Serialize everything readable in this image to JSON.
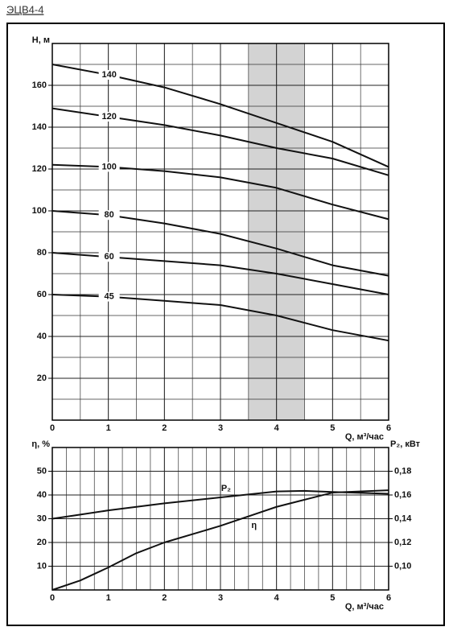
{
  "title": "ЭЦВ4-4",
  "chart_data": [
    {
      "type": "line",
      "x": [
        0,
        1,
        2,
        3,
        4,
        5,
        6
      ],
      "xlim": [
        0,
        6
      ],
      "xticks": [
        0,
        1,
        2,
        3,
        4,
        5,
        6
      ],
      "ylim": [
        0,
        180
      ],
      "yticks": [
        20,
        40,
        60,
        80,
        100,
        120,
        140,
        160
      ],
      "xlabel": "Q, м³/час",
      "ylabel": "H, м",
      "grid": true,
      "shaded_range": [
        3.5,
        4.5
      ],
      "shade_color": "#d3d3d3",
      "series": [
        {
          "name": "140",
          "color": "#111111",
          "values": [
            170,
            165,
            159,
            151,
            142,
            133,
            121
          ]
        },
        {
          "name": "120",
          "color": "#111111",
          "values": [
            149,
            145,
            141,
            136,
            130,
            125,
            117
          ]
        },
        {
          "name": "100",
          "color": "#111111",
          "values": [
            122,
            121,
            119,
            116,
            111,
            103,
            96
          ]
        },
        {
          "name": "80",
          "color": "#111111",
          "values": [
            100,
            98,
            94,
            89,
            82,
            74,
            69
          ]
        },
        {
          "name": "60",
          "color": "#111111",
          "values": [
            80,
            78,
            76,
            74,
            70,
            65,
            60
          ]
        },
        {
          "name": "45",
          "color": "#111111",
          "values": [
            60,
            59,
            57,
            55,
            50,
            43,
            38
          ]
        }
      ]
    },
    {
      "type": "line",
      "x": [
        0,
        0.5,
        1,
        1.5,
        2,
        3,
        4,
        4.5,
        5,
        6
      ],
      "xlim": [
        0,
        6
      ],
      "xticks": [
        0,
        1,
        2,
        3,
        4,
        5,
        6
      ],
      "ylim": [
        0,
        60
      ],
      "yticks": [
        10,
        20,
        30,
        40,
        50
      ],
      "y2lim": [
        0.08,
        0.2
      ],
      "y2ticks": [
        {
          "value": 0.1,
          "label": "0,10"
        },
        {
          "value": 0.12,
          "label": "0,12"
        },
        {
          "value": 0.14,
          "label": "0,14"
        },
        {
          "value": 0.16,
          "label": "0,16"
        },
        {
          "value": 0.18,
          "label": "0,18"
        }
      ],
      "xlabel": "Q, м³/час",
      "ylabel": "η, %",
      "y2label": "P₂, кВт",
      "grid": true,
      "series": [
        {
          "name": "P₂",
          "color": "#111111",
          "axis": "y2",
          "values": [
            0.14,
            0.1435,
            0.147,
            0.15,
            0.153,
            0.158,
            0.163,
            0.1635,
            0.1625,
            0.161
          ]
        },
        {
          "name": "η",
          "color": "#111111",
          "values": [
            0,
            4,
            9.5,
            15.5,
            20,
            27,
            35,
            38,
            41,
            42
          ]
        }
      ]
    }
  ]
}
